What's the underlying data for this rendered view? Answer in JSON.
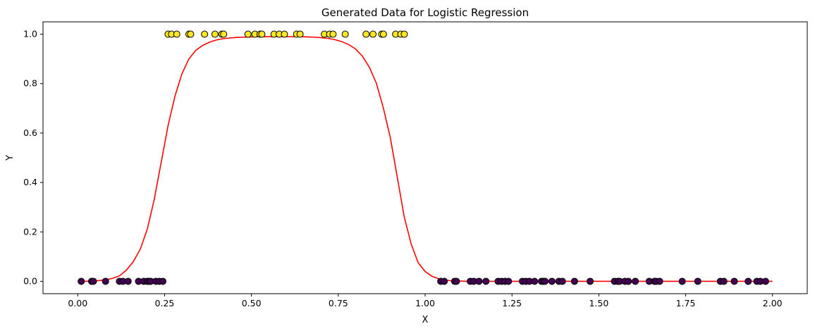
{
  "chart_data": {
    "type": "scatter",
    "title": "Generated Data for Logistic Regression",
    "xlabel": "X",
    "ylabel": "Y",
    "xlim": [
      -0.1,
      2.1
    ],
    "ylim": [
      -0.05,
      1.05
    ],
    "xticks": [
      0.0,
      0.25,
      0.5,
      0.75,
      1.0,
      1.25,
      1.5,
      1.75,
      2.0
    ],
    "xtick_labels": [
      "0.00",
      "0.25",
      "0.50",
      "0.75",
      "1.00",
      "1.25",
      "1.50",
      "1.75",
      "2.00"
    ],
    "yticks": [
      0.0,
      0.2,
      0.4,
      0.6,
      0.8,
      1.0
    ],
    "ytick_labels": [
      "0.0",
      "0.2",
      "0.4",
      "0.6",
      "0.8",
      "1.0"
    ],
    "grid": false,
    "colors": {
      "class_0": "#440154",
      "class_1": "#fde725",
      "marker_edge": "#000000",
      "curve": "#ff0000"
    },
    "points_class_0": [
      0.01,
      0.04,
      0.045,
      0.08,
      0.12,
      0.13,
      0.145,
      0.175,
      0.19,
      0.2,
      0.205,
      0.21,
      0.225,
      0.235,
      0.245,
      1.045,
      1.055,
      1.085,
      1.09,
      1.13,
      1.14,
      1.155,
      1.175,
      1.21,
      1.22,
      1.23,
      1.24,
      1.28,
      1.29,
      1.3,
      1.315,
      1.335,
      1.34,
      1.345,
      1.365,
      1.385,
      1.395,
      1.43,
      1.475,
      1.545,
      1.555,
      1.56,
      1.575,
      1.585,
      1.605,
      1.645,
      1.66,
      1.665,
      1.675,
      1.74,
      1.785,
      1.85,
      1.86,
      1.89,
      1.93,
      1.955,
      1.965,
      1.98
    ],
    "points_class_1": [
      0.26,
      0.27,
      0.285,
      0.32,
      0.325,
      0.365,
      0.395,
      0.415,
      0.42,
      0.49,
      0.51,
      0.525,
      0.53,
      0.565,
      0.58,
      0.595,
      0.63,
      0.64,
      0.71,
      0.725,
      0.735,
      0.77,
      0.83,
      0.85,
      0.875,
      0.88,
      0.915,
      0.93,
      0.94
    ],
    "curve": {
      "x": [
        0.0,
        0.02,
        0.04,
        0.06,
        0.08,
        0.1,
        0.12,
        0.14,
        0.16,
        0.18,
        0.2,
        0.22,
        0.24,
        0.26,
        0.28,
        0.3,
        0.32,
        0.34,
        0.36,
        0.38,
        0.4,
        0.42,
        0.44,
        0.46,
        0.48,
        0.5,
        0.52,
        0.54,
        0.56,
        0.58,
        0.6,
        0.62,
        0.64,
        0.66,
        0.68,
        0.7,
        0.72,
        0.74,
        0.76,
        0.78,
        0.8,
        0.82,
        0.84,
        0.86,
        0.88,
        0.9,
        0.92,
        0.94,
        0.96,
        0.98,
        1.0,
        1.02,
        1.04,
        1.06,
        1.08,
        1.1,
        1.12,
        1.14,
        1.16,
        1.2,
        1.3,
        1.5,
        1.75,
        2.0
      ],
      "y": [
        0.0,
        0.0,
        0.001,
        0.003,
        0.006,
        0.012,
        0.022,
        0.045,
        0.08,
        0.13,
        0.21,
        0.33,
        0.48,
        0.63,
        0.75,
        0.84,
        0.9,
        0.935,
        0.955,
        0.968,
        0.977,
        0.982,
        0.985,
        0.987,
        0.988,
        0.989,
        0.99,
        0.99,
        0.99,
        0.99,
        0.99,
        0.99,
        0.99,
        0.989,
        0.988,
        0.986,
        0.983,
        0.978,
        0.97,
        0.958,
        0.94,
        0.91,
        0.865,
        0.8,
        0.7,
        0.58,
        0.42,
        0.26,
        0.15,
        0.075,
        0.04,
        0.02,
        0.01,
        0.004,
        0.002,
        0.001,
        0.0,
        0.0,
        0.0,
        0.0,
        0.0,
        0.0,
        0.0,
        0.0
      ]
    }
  }
}
